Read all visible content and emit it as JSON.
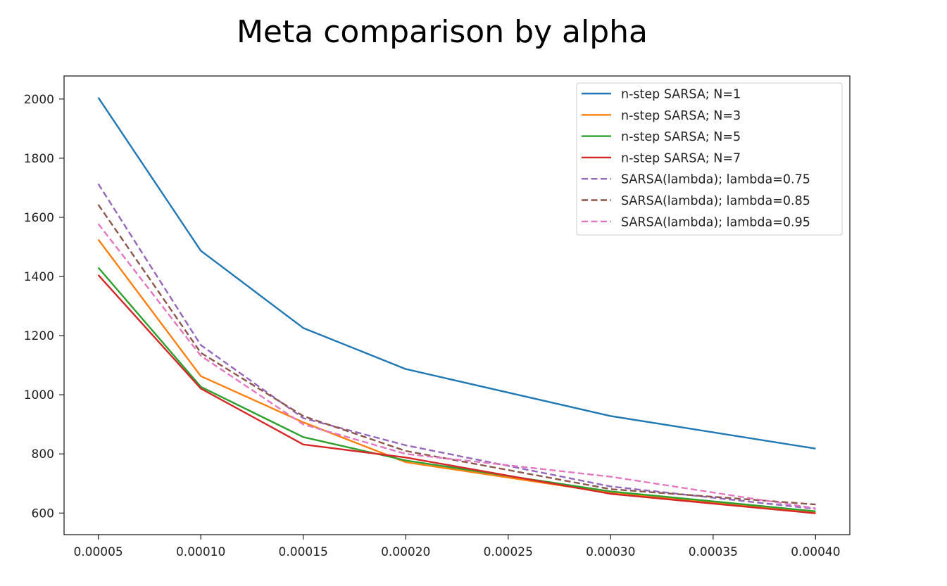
{
  "chart_data": {
    "type": "line",
    "title": "Meta comparison by alpha",
    "xlabel": "",
    "ylabel": "",
    "x": [
      5e-05,
      0.0001,
      0.00015,
      0.0002,
      0.0003,
      0.0004
    ],
    "xlim": [
      3.33e-05,
      0.0004167
    ],
    "ylim": [
      527,
      2078
    ],
    "x_ticks": [
      "0.00005",
      "0.00010",
      "0.00015",
      "0.00020",
      "0.00025",
      "0.00030",
      "0.00035",
      "0.00040"
    ],
    "x_tick_values": [
      5e-05,
      0.0001,
      0.00015,
      0.0002,
      0.00025,
      0.0003,
      0.00035,
      0.0004
    ],
    "y_ticks": [
      "600",
      "800",
      "1000",
      "1200",
      "1400",
      "1600",
      "1800",
      "2000"
    ],
    "y_tick_values": [
      600,
      800,
      1000,
      1200,
      1400,
      1600,
      1800,
      2000
    ],
    "grid": false,
    "legend_position": "top-right",
    "series": [
      {
        "name": "n-step SARSA; N=1",
        "color": "#1f77b4",
        "dash": "solid",
        "values": [
          2005,
          1487,
          1226,
          1087,
          928,
          818
        ]
      },
      {
        "name": "n-step SARSA; N=3",
        "color": "#ff7f0e",
        "dash": "solid",
        "values": [
          1525,
          1063,
          907,
          772,
          668,
          601
        ]
      },
      {
        "name": "n-step SARSA; N=5",
        "color": "#2ca02c",
        "dash": "solid",
        "values": [
          1430,
          1027,
          857,
          778,
          673,
          606
        ]
      },
      {
        "name": "n-step SARSA; N=7",
        "color": "#d62728",
        "dash": "solid",
        "values": [
          1405,
          1021,
          832,
          788,
          665,
          599
        ]
      },
      {
        "name": "SARSA(lambda); lambda=0.75",
        "color": "#9467bd",
        "dash": "dashed",
        "values": [
          1713,
          1168,
          921,
          829,
          690,
          614
        ]
      },
      {
        "name": "SARSA(lambda); lambda=0.85",
        "color": "#8c564b",
        "dash": "dashed",
        "values": [
          1643,
          1142,
          928,
          810,
          681,
          629
        ]
      },
      {
        "name": "SARSA(lambda); lambda=0.95",
        "color": "#e377c2",
        "dash": "dashed",
        "values": [
          1578,
          1132,
          900,
          800,
          723,
          616
        ]
      }
    ]
  }
}
